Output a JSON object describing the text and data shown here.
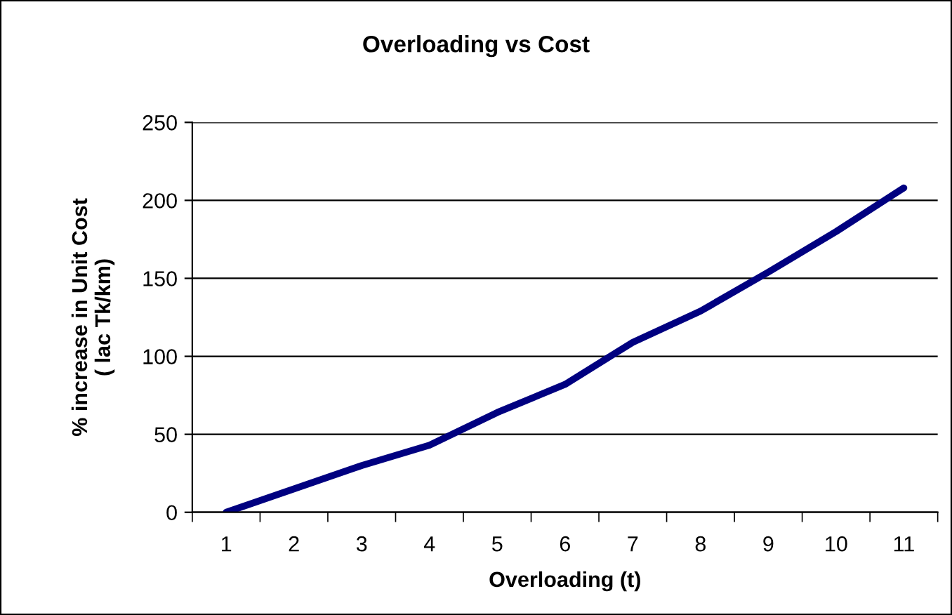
{
  "chart_data": {
    "type": "line",
    "title": "Overloading vs Cost",
    "xlabel": "Overloading (t)",
    "ylabel": "% increase in Unit Cost\n( lac Tk/km)",
    "categories": [
      "1",
      "2",
      "3",
      "4",
      "5",
      "6",
      "7",
      "8",
      "9",
      "10",
      "11"
    ],
    "series": [
      {
        "color": "#000080",
        "values": [
          0,
          15,
          30,
          43,
          64,
          82,
          109,
          129,
          154,
          180,
          208
        ]
      }
    ],
    "ylim": [
      0,
      250
    ],
    "yticks": [
      0,
      50,
      100,
      150,
      200,
      250
    ],
    "grid": "y",
    "marker": "none",
    "line_style": "solid"
  }
}
